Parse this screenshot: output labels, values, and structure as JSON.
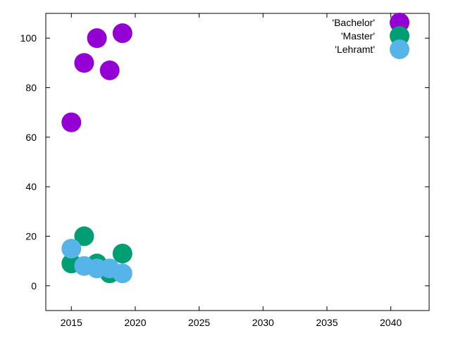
{
  "chart_data": {
    "type": "scatter",
    "xlim": [
      2013,
      2043
    ],
    "ylim": [
      -10,
      110
    ],
    "x_ticks": [
      "2015",
      "2020",
      "2025",
      "2030",
      "2035",
      "2040"
    ],
    "y_ticks": [
      "0",
      "20",
      "40",
      "60",
      "80",
      "100"
    ],
    "grid": false,
    "legend_position": "top-right",
    "series": [
      {
        "name": "'Bachelor'",
        "color": "#9400d3",
        "points": [
          {
            "x": 2015,
            "y": 66
          },
          {
            "x": 2016,
            "y": 90
          },
          {
            "x": 2017,
            "y": 100
          },
          {
            "x": 2018,
            "y": 87
          },
          {
            "x": 2019,
            "y": 102
          }
        ]
      },
      {
        "name": "'Master'",
        "color": "#009e73",
        "points": [
          {
            "x": 2015,
            "y": 9
          },
          {
            "x": 2016,
            "y": 20
          },
          {
            "x": 2017,
            "y": 9
          },
          {
            "x": 2018,
            "y": 5
          },
          {
            "x": 2019,
            "y": 13
          }
        ]
      },
      {
        "name": "'Lehramt'",
        "color": "#56b4e9",
        "points": [
          {
            "x": 2015,
            "y": 15
          },
          {
            "x": 2016,
            "y": 8
          },
          {
            "x": 2017,
            "y": 7
          },
          {
            "x": 2018,
            "y": 7
          },
          {
            "x": 2019,
            "y": 5
          }
        ]
      }
    ]
  }
}
